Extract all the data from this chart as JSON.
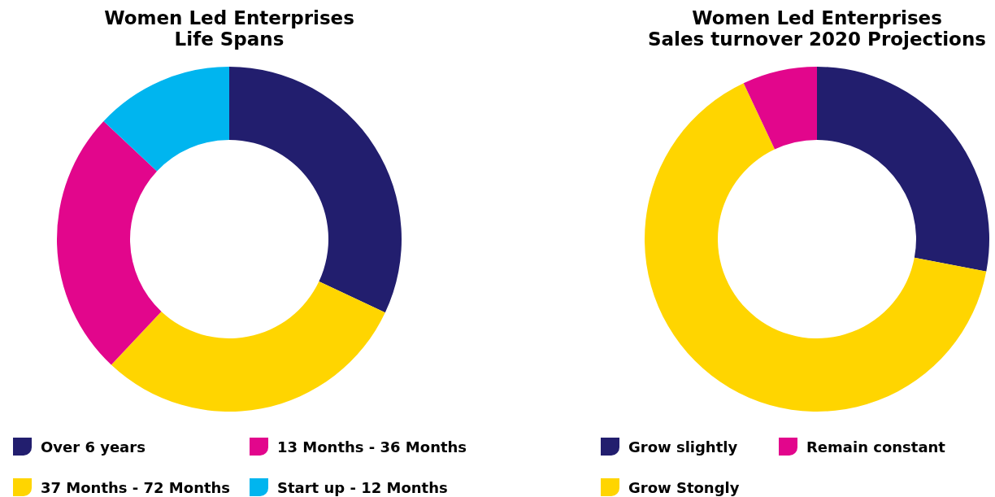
{
  "chart_data": [
    {
      "type": "donut",
      "title": "Women Led Enterprises\nLife Spans",
      "categories": [
        "Over 6 years",
        "37 Months - 72 Months",
        "13 Months - 36 Months",
        "Start up - 12 Months"
      ],
      "values": [
        32,
        30,
        25,
        13
      ],
      "colors": [
        "#221e6e",
        "#ffd500",
        "#e2068c",
        "#00b5ef"
      ],
      "legend": "bottom"
    },
    {
      "type": "donut",
      "title": "Women Led Enterprises\nSales turnover 2020 Projections",
      "categories": [
        "Grow slightly",
        "Grow Stongly",
        "Remain constant"
      ],
      "values": [
        28,
        65,
        7
      ],
      "colors": [
        "#221e6e",
        "#ffd500",
        "#e2068c"
      ],
      "legend": "bottom"
    }
  ]
}
